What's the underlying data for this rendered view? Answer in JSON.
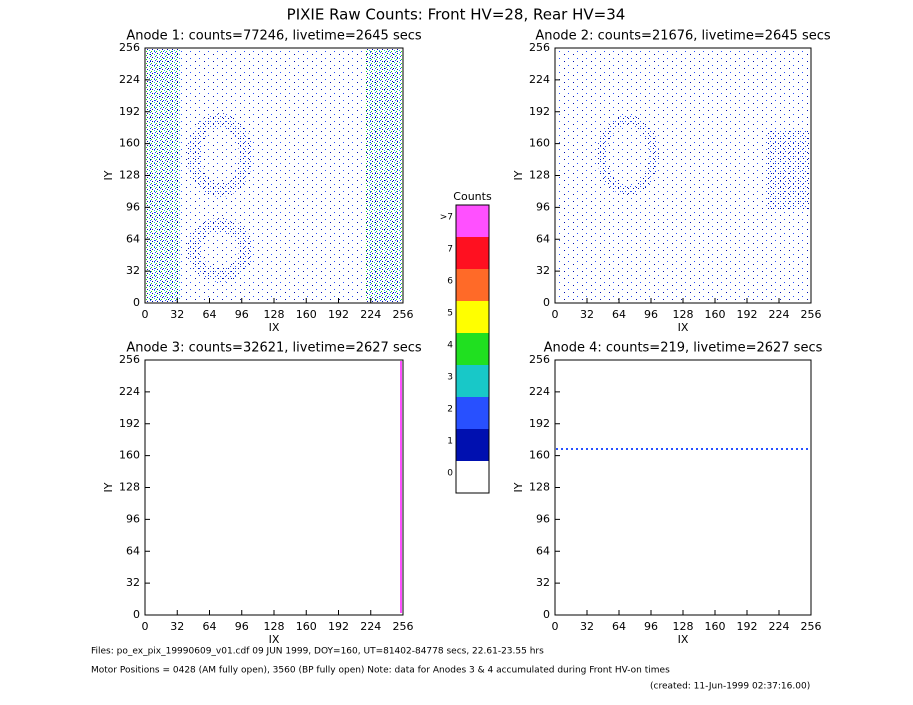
{
  "page": {
    "title": "PIXIE Raw Counts:  Front HV=28, Rear HV=34",
    "footer": [
      "Files: po_ex_pix_19990609_v01.cdf    09 JUN 1999, DOY=160, UT=81402-84778 secs, 22.61-23.55 hrs",
      "Motor Positions = 0428 (AM fully open), 3560 (BP fully open)    Note: data for Anodes 3 & 4 accumulated during Front HV-on times",
      "(created: 11-Jun-1999 02:37:16.00)"
    ]
  },
  "colorbar": {
    "title": "Counts",
    "labels": [
      "0",
      "1",
      "2",
      "3",
      "4",
      "5",
      "6",
      "7",
      ">7"
    ],
    "colors": [
      "#ffffff",
      "#0010b0",
      "#2850ff",
      "#18c8c8",
      "#20e020",
      "#ffff00",
      "#ff6a28",
      "#ff1020",
      "#ff50ff"
    ]
  },
  "chart_data": [
    {
      "type": "heatmap",
      "title": "Anode 1: counts=77246, livetime=2645 secs",
      "xlabel": "IX",
      "ylabel": "IY",
      "xlim": [
        0,
        256
      ],
      "ylim": [
        0,
        256
      ],
      "xticks": [
        0,
        32,
        64,
        96,
        128,
        160,
        192,
        224,
        256
      ],
      "yticks": [
        0,
        32,
        64,
        96,
        128,
        160,
        192,
        224,
        256
      ]
    },
    {
      "type": "heatmap",
      "title": "Anode 2: counts=21676, livetime=2645 secs",
      "xlabel": "IX",
      "ylabel": "IY",
      "xlim": [
        0,
        256
      ],
      "ylim": [
        0,
        256
      ],
      "xticks": [
        0,
        32,
        64,
        96,
        128,
        160,
        192,
        224,
        256
      ],
      "yticks": [
        0,
        32,
        64,
        96,
        128,
        160,
        192,
        224,
        256
      ]
    },
    {
      "type": "heatmap",
      "title": "Anode 3: counts=32621, livetime=2627 secs",
      "xlabel": "IX",
      "ylabel": "IY",
      "xlim": [
        0,
        256
      ],
      "ylim": [
        0,
        256
      ],
      "xticks": [
        0,
        32,
        64,
        96,
        128,
        160,
        192,
        224,
        256
      ],
      "yticks": [
        0,
        32,
        64,
        96,
        128,
        160,
        192,
        224,
        256
      ]
    },
    {
      "type": "heatmap",
      "title": "Anode 4: counts=219, livetime=2627 secs",
      "xlabel": "IX",
      "ylabel": "IY",
      "xlim": [
        0,
        256
      ],
      "ylim": [
        0,
        256
      ],
      "xticks": [
        0,
        32,
        64,
        96,
        128,
        160,
        192,
        224,
        256
      ],
      "yticks": [
        0,
        32,
        64,
        96,
        128,
        160,
        192,
        224,
        256
      ]
    }
  ]
}
